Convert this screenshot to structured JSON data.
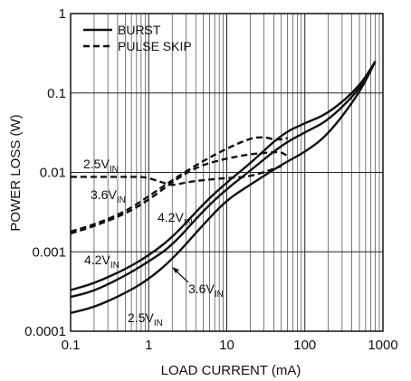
{
  "chart_data": {
    "type": "line",
    "xlabel": "LOAD CURRENT (mA)",
    "ylabel": "POWER LOSS (W)",
    "x_scale": "log",
    "y_scale": "log",
    "xlim": [
      0.1,
      1000
    ],
    "ylim": [
      0.0001,
      1
    ],
    "grid": true,
    "x_ticks": [
      {
        "value": 0.1,
        "label": "0.1"
      },
      {
        "value": 1,
        "label": "1"
      },
      {
        "value": 10,
        "label": "10"
      },
      {
        "value": 100,
        "label": "100"
      },
      {
        "value": 1000,
        "label": "1000"
      }
    ],
    "y_ticks": [
      {
        "value": 0.0001,
        "label": "0.0001"
      },
      {
        "value": 0.001,
        "label": "0.001"
      },
      {
        "value": 0.01,
        "label": "0.01"
      },
      {
        "value": 0.1,
        "label": "0.1"
      },
      {
        "value": 1,
        "label": "1"
      }
    ],
    "legend": {
      "position": "top-left",
      "entries": [
        {
          "label": "BURST",
          "style": "solid"
        },
        {
          "label": "PULSE SKIP",
          "style": "dashed"
        }
      ]
    },
    "series": [
      {
        "mode": "BURST",
        "vin": "2.5V",
        "style": "solid",
        "x": [
          0.1,
          0.2,
          0.5,
          1,
          2,
          5,
          10,
          20,
          50,
          100,
          200,
          500,
          800
        ],
        "y": [
          0.00017,
          0.0002,
          0.0003,
          0.00045,
          0.0008,
          0.0022,
          0.0045,
          0.007,
          0.0125,
          0.018,
          0.03,
          0.1,
          0.25
        ]
      },
      {
        "mode": "BURST",
        "vin": "3.6V",
        "style": "solid",
        "x": [
          0.1,
          0.2,
          0.5,
          1,
          2,
          5,
          10,
          20,
          50,
          100,
          200,
          500,
          800
        ],
        "y": [
          0.00027,
          0.00032,
          0.0005,
          0.00075,
          0.0012,
          0.0033,
          0.0062,
          0.0105,
          0.022,
          0.032,
          0.045,
          0.11,
          0.25
        ]
      },
      {
        "mode": "BURST",
        "vin": "4.2V",
        "style": "solid",
        "x": [
          0.1,
          0.2,
          0.5,
          1,
          2,
          5,
          10,
          20,
          50,
          100,
          200,
          500,
          800
        ],
        "y": [
          0.00033,
          0.0004,
          0.0006,
          0.0009,
          0.0015,
          0.004,
          0.0075,
          0.013,
          0.03,
          0.042,
          0.055,
          0.12,
          0.25
        ]
      },
      {
        "mode": "PULSE SKIP",
        "vin": "2.5V",
        "style": "dashed",
        "x": [
          0.1,
          0.2,
          0.5,
          0.8,
          1,
          1.5,
          2,
          3,
          5,
          10,
          20,
          50
        ],
        "y": [
          0.0088,
          0.0088,
          0.0088,
          0.0088,
          0.0085,
          0.0075,
          0.0068,
          0.0075,
          0.008,
          0.0085,
          0.0088,
          0.012
        ]
      },
      {
        "mode": "PULSE SKIP",
        "vin": "3.6V",
        "style": "dashed",
        "x": [
          0.1,
          0.2,
          0.5,
          1,
          2,
          3,
          5,
          10,
          20,
          40,
          50,
          60
        ],
        "y": [
          0.0017,
          0.0021,
          0.003,
          0.0045,
          0.0075,
          0.0098,
          0.0125,
          0.015,
          0.017,
          0.018,
          0.018,
          0.016
        ]
      },
      {
        "mode": "PULSE SKIP",
        "vin": "4.2V",
        "style": "dashed",
        "x": [
          0.1,
          0.2,
          0.5,
          1,
          2,
          5,
          10,
          20,
          30,
          40,
          50,
          60
        ],
        "y": [
          0.0018,
          0.0022,
          0.0032,
          0.005,
          0.008,
          0.014,
          0.02,
          0.027,
          0.028,
          0.026,
          0.026,
          0.027
        ]
      }
    ],
    "annotations": [
      {
        "main": "2.5V",
        "sub": "IN"
      },
      {
        "main": "3.6V",
        "sub": "IN"
      },
      {
        "main": "4.2V",
        "sub": "IN"
      },
      {
        "main": "4.2V",
        "sub": "IN"
      },
      {
        "main": "3.6V",
        "sub": "IN"
      },
      {
        "main": "2.5V",
        "sub": "IN"
      }
    ]
  }
}
